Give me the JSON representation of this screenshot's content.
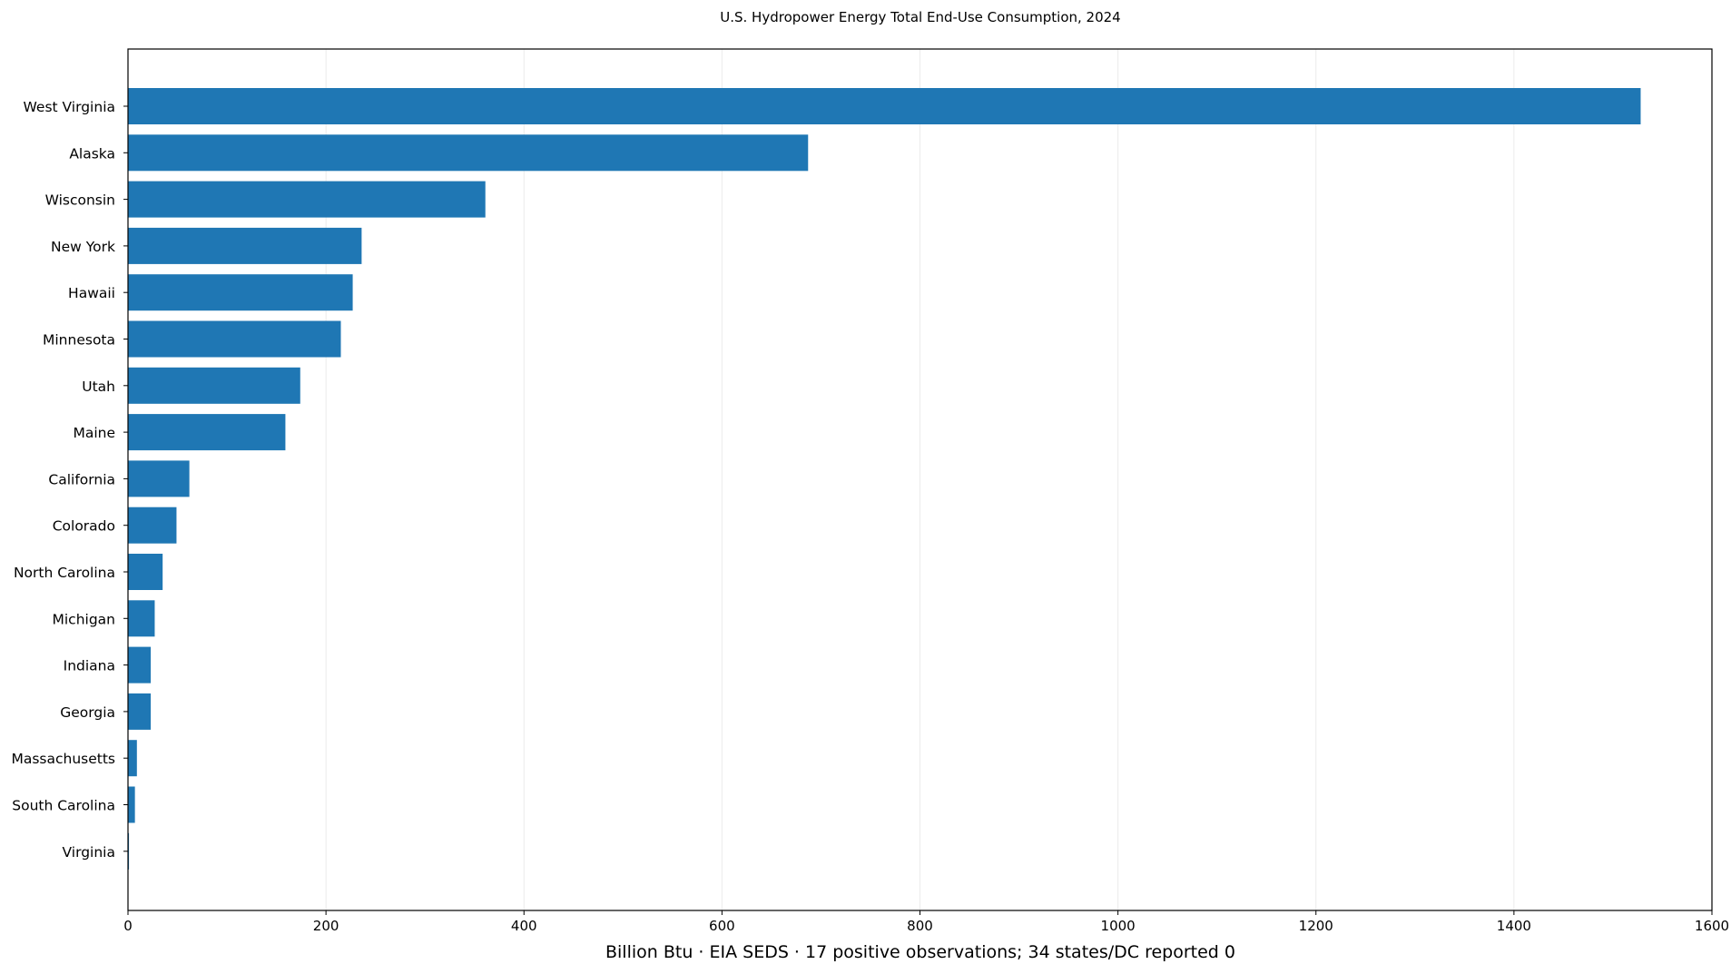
{
  "chart_data": {
    "type": "bar",
    "orientation": "horizontal",
    "title": "U.S. Hydropower Energy Total End-Use Consumption, 2024",
    "xlabel": "Billion Btu · EIA SEDS · 17 positive observations; 34 states/DC reported 0",
    "ylabel": "",
    "xlim": [
      0,
      1600
    ],
    "xticks": [
      "0",
      "200",
      "400",
      "600",
      "800",
      "1000",
      "1200",
      "1400",
      "1600"
    ],
    "grid": "vertical",
    "bar_color": "#1f77b4",
    "categories": [
      "West Virginia",
      "Alaska",
      "Wisconsin",
      "New York",
      "Hawaii",
      "Minnesota",
      "Utah",
      "Maine",
      "California",
      "Colorado",
      "North Carolina",
      "Michigan",
      "Indiana",
      "Georgia",
      "Massachusetts",
      "South Carolina",
      "Virginia"
    ],
    "values": [
      1528,
      687,
      361,
      236,
      227,
      215,
      174,
      159,
      62,
      49,
      35,
      27,
      23,
      23,
      9,
      7,
      1
    ]
  }
}
